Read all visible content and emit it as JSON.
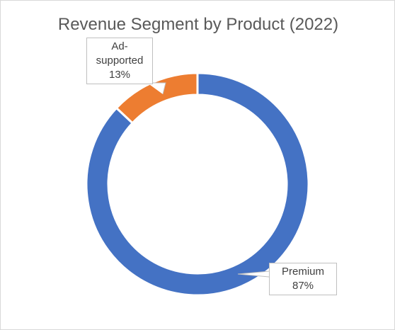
{
  "chart_data": {
    "type": "pie",
    "variant": "doughnut",
    "title": "Revenue Segment by Product (2022)",
    "categories": [
      "Premium",
      "Ad-supported"
    ],
    "values": [
      87,
      13
    ],
    "value_unit": "%",
    "colors": [
      "#4472c4",
      "#ed7d31"
    ],
    "data_labels": [
      {
        "category": "Premium",
        "lines": [
          "Premium"
        ],
        "value_text": "87%"
      },
      {
        "category": "Ad-supported",
        "lines": [
          "Ad-",
          "supported"
        ],
        "value_text": "13%"
      }
    ],
    "legend": "none"
  }
}
